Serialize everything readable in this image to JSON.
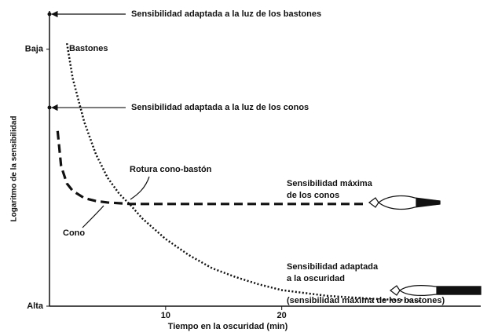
{
  "chart_data": {
    "type": "line",
    "x_label": "Tiempo en la oscuridad (min)",
    "y_label": "Logaritmo de la sensibilidad",
    "xlim": [
      0,
      37
    ],
    "xticks": [
      10,
      20
    ],
    "ylim": [
      0,
      100
    ],
    "yticks": [
      {
        "value": 88,
        "label": "Baja"
      },
      {
        "value": 0,
        "label": "Alta"
      }
    ],
    "reference_levels": [
      {
        "label": "Sensibilidad adaptada a la luz de los bastones",
        "value": 100
      },
      {
        "label": "Sensibilidad adaptada a la luz de los conos",
        "value": 68
      }
    ],
    "series": [
      {
        "name": "Bastones",
        "color": "#111111",
        "style": "dotted",
        "x": [
          1.5,
          2,
          3,
          4,
          5,
          6,
          7,
          8,
          10,
          12,
          14,
          16,
          18,
          20,
          24,
          28,
          32
        ],
        "values": [
          90,
          78,
          63,
          52,
          44,
          38.5,
          34.5,
          30,
          23,
          17.5,
          13,
          10,
          7.5,
          5.5,
          3.5,
          2.5,
          1.8
        ]
      },
      {
        "name": "Cono",
        "color": "#111111",
        "style": "dashed",
        "x": [
          0.7,
          1,
          1.5,
          2,
          3,
          4,
          5,
          7,
          10,
          15,
          20,
          27
        ],
        "values": [
          60,
          48,
          42,
          39.5,
          37,
          36,
          35.5,
          35,
          35,
          35,
          35,
          35
        ]
      }
    ],
    "annotations": [
      [
        "Rotura cono-bastón"
      ],
      [
        "Sensibilidad máxima",
        "de los conos"
      ],
      [
        "Sensibilidad adaptada",
        "a la oscuridad",
        "(sensibilidad máxima de los bastones)"
      ]
    ]
  }
}
